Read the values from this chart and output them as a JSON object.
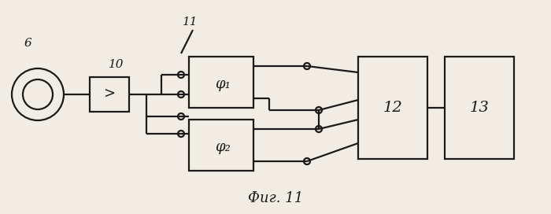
{
  "bg_color": "#f2ede4",
  "line_color": "#1a1a1a",
  "fig_caption": "Фиг. 11",
  "label_6": "6",
  "label_10": "10",
  "label_11": "11",
  "label_phi1": "φ₁",
  "label_phi2": "φ₂",
  "label_12": "12",
  "label_13": "13"
}
